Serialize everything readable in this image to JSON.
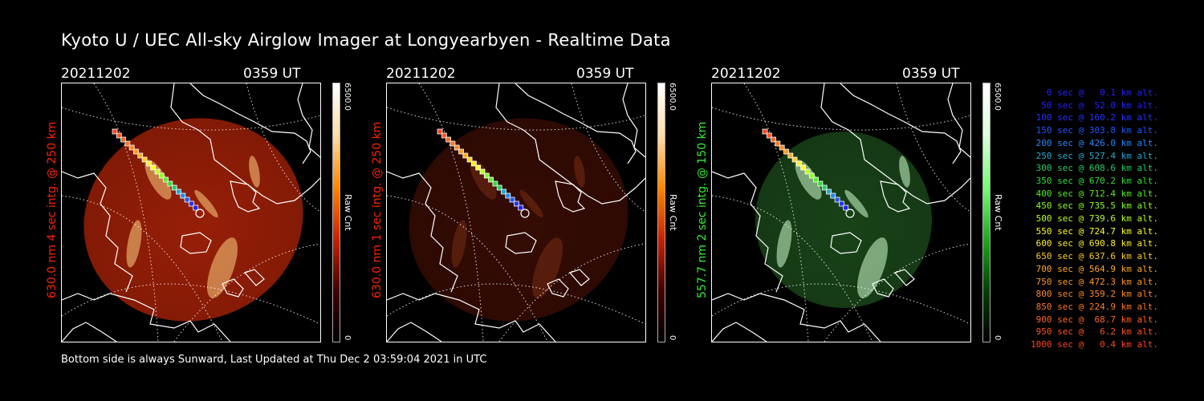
{
  "title": "Kyoto U / UEC All-sky Airglow Imager at Longyearbyen - Realtime Data",
  "footer": "Bottom side is always Sunward, Last Updated at Thu Dec  2 03:59:04 2021 in UTC",
  "panels": [
    {
      "date": "20211202",
      "time": "0359 UT",
      "side_label": "630.0 nm 4 sec intg. @ 250 km",
      "label_color": "#ff2200",
      "cbar_max": "6500.0",
      "cbar_unit": "Raw Cnt",
      "cbar_min": "0",
      "tone": "red-bright"
    },
    {
      "date": "20211202",
      "time": "0359 UT",
      "side_label": "630.0 nm 1 sec intg. @ 250 km",
      "label_color": "#ff2200",
      "cbar_max": "6500.0",
      "cbar_unit": "Raw Cnt",
      "cbar_min": "0",
      "tone": "red-dim"
    },
    {
      "date": "20211202",
      "time": "0359 UT",
      "side_label": "557.7 nm 2 sec intg. @ 150 km",
      "label_color": "#33ee33",
      "cbar_max": "6500.0",
      "cbar_unit": "Raw Cnt",
      "cbar_min": "0",
      "tone": "green"
    }
  ],
  "legend": [
    {
      "text": "0 sec @   0.1 km alt.",
      "color": "#2222ff"
    },
    {
      "text": "50 sec @  52.0 km alt.",
      "color": "#2222ff"
    },
    {
      "text": "100 sec @ 160.2 km alt.",
      "color": "#2233ff"
    },
    {
      "text": "150 sec @ 303.8 km alt.",
      "color": "#2255ff"
    },
    {
      "text": "200 sec @ 426.0 km alt.",
      "color": "#2288ff"
    },
    {
      "text": "250 sec @ 527.4 km alt.",
      "color": "#22aacc"
    },
    {
      "text": "300 sec @ 608.6 km alt.",
      "color": "#22cc66"
    },
    {
      "text": "350 sec @ 670.2 km alt.",
      "color": "#33dd33"
    },
    {
      "text": "400 sec @ 712.4 km alt.",
      "color": "#55ee22"
    },
    {
      "text": "450 sec @ 735.5 km alt.",
      "color": "#88ff22"
    },
    {
      "text": "500 sec @ 739.6 km alt.",
      "color": "#bbff22"
    },
    {
      "text": "550 sec @ 724.7 km alt.",
      "color": "#ffff22"
    },
    {
      "text": "600 sec @ 690.8 km alt.",
      "color": "#ffee22"
    },
    {
      "text": "650 sec @ 637.6 km alt.",
      "color": "#ffcc22"
    },
    {
      "text": "700 sec @ 564.9 km alt.",
      "color": "#ffaa22"
    },
    {
      "text": "750 sec @ 472.3 km alt.",
      "color": "#ff9922"
    },
    {
      "text": "800 sec @ 359.2 km alt.",
      "color": "#ff8822"
    },
    {
      "text": "850 sec @ 224.9 km alt.",
      "color": "#ff7722"
    },
    {
      "text": "900 sec @  68.7 km alt.",
      "color": "#ff6622"
    },
    {
      "text": "950 sec @   6.2 km alt.",
      "color": "#ff5522"
    },
    {
      "text": "1000 sec @   0.4 km alt.",
      "color": "#ff4422"
    }
  ]
}
